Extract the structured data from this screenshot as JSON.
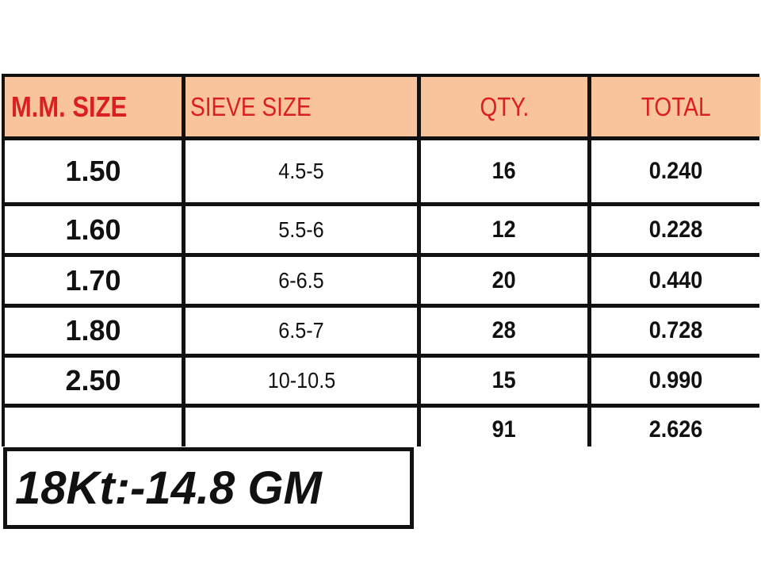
{
  "table": {
    "headers": [
      "M.M. SIZE",
      "SIEVE SIZE",
      "QTY.",
      "TOTAL"
    ],
    "rows": [
      [
        "1.50",
        "4.5-5",
        "16",
        "0.240"
      ],
      [
        "1.60",
        "5.5-6",
        "12",
        "0.228"
      ],
      [
        "1.70",
        "6-6.5",
        "20",
        "0.440"
      ],
      [
        "1.80",
        "6.5-7",
        "28",
        "0.728"
      ],
      [
        "2.50",
        "10-10.5",
        "15",
        "0.990"
      ]
    ],
    "totals": {
      "qty": "91",
      "total": "2.626"
    }
  },
  "footer_note": "18Kt:-14.8 GM",
  "colors": {
    "header_bg": "#f9c39b",
    "header_text": "#d91f1f",
    "border": "#111111"
  }
}
